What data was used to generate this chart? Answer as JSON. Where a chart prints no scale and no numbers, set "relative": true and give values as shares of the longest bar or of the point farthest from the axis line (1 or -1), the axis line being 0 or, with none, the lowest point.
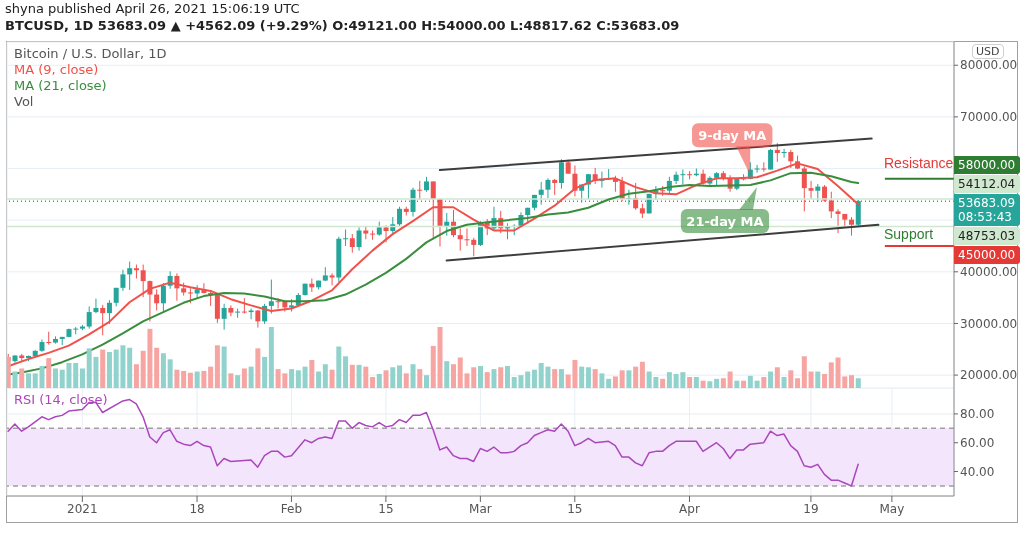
{
  "chart_data": [
    {
      "type": "candlestick",
      "title": "Bitcoin / U.S. Dollar, 1D",
      "annotations": [
        "shyna published April 26, 2021 15:06:19 UTC",
        "BTCUSD, 1D  53683.09 ▲ +4562.09 (+9.29%)  O:49121.00 H:54000.00 L:48817.62 C:53683.09",
        "USD",
        {
          "text": "9-day MA",
          "x": "2021-04-10",
          "y": 58300
        },
        {
          "text": "21-day MA",
          "x": "2021-04-11",
          "y": 56800
        },
        "Resistance",
        "Support",
        "08:53:43"
      ],
      "x": [
        "2020-12-21",
        "2020-12-22",
        "2020-12-23",
        "2020-12-24",
        "2020-12-25",
        "2020-12-26",
        "2020-12-27",
        "2020-12-28",
        "2020-12-29",
        "2020-12-30",
        "2020-12-31",
        "2021-01-01",
        "2021-01-02",
        "2021-01-03",
        "2021-01-04",
        "2021-01-05",
        "2021-01-06",
        "2021-01-07",
        "2021-01-08",
        "2021-01-09",
        "2021-01-10",
        "2021-01-11",
        "2021-01-12",
        "2021-01-13",
        "2021-01-14",
        "2021-01-15",
        "2021-01-16",
        "2021-01-17",
        "2021-01-18",
        "2021-01-19",
        "2021-01-20",
        "2021-01-21",
        "2021-01-22",
        "2021-01-23",
        "2021-01-24",
        "2021-01-25",
        "2021-01-26",
        "2021-01-27",
        "2021-01-28",
        "2021-01-29",
        "2021-01-30",
        "2021-01-31",
        "2021-02-01",
        "2021-02-02",
        "2021-02-03",
        "2021-02-04",
        "2021-02-05",
        "2021-02-06",
        "2021-02-07",
        "2021-02-08",
        "2021-02-09",
        "2021-02-10",
        "2021-02-11",
        "2021-02-12",
        "2021-02-13",
        "2021-02-14",
        "2021-02-15",
        "2021-02-16",
        "2021-02-17",
        "2021-02-18",
        "2021-02-19",
        "2021-02-20",
        "2021-02-21",
        "2021-02-22",
        "2021-02-23",
        "2021-02-24",
        "2021-02-25",
        "2021-02-26",
        "2021-02-27",
        "2021-02-28",
        "2021-03-01",
        "2021-03-02",
        "2021-03-03",
        "2021-03-04",
        "2021-03-05",
        "2021-03-06",
        "2021-03-07",
        "2021-03-08",
        "2021-03-09",
        "2021-03-10",
        "2021-03-11",
        "2021-03-12",
        "2021-03-13",
        "2021-03-14",
        "2021-03-15",
        "2021-03-16",
        "2021-03-17",
        "2021-03-18",
        "2021-03-19",
        "2021-03-20",
        "2021-03-21",
        "2021-03-22",
        "2021-03-23",
        "2021-03-24",
        "2021-03-25",
        "2021-03-26",
        "2021-03-27",
        "2021-03-28",
        "2021-03-29",
        "2021-03-30",
        "2021-03-31",
        "2021-04-01",
        "2021-04-02",
        "2021-04-03",
        "2021-04-04",
        "2021-04-05",
        "2021-04-06",
        "2021-04-07",
        "2021-04-08",
        "2021-04-09",
        "2021-04-10",
        "2021-04-11",
        "2021-04-12",
        "2021-04-13",
        "2021-04-14",
        "2021-04-15",
        "2021-04-16",
        "2021-04-17",
        "2021-04-18",
        "2021-04-19",
        "2021-04-20",
        "2021-04-21",
        "2021-04-22",
        "2021-04-23",
        "2021-04-24",
        "2021-04-25",
        "2021-04-26"
      ],
      "ohlc": [
        [
          23500,
          24100,
          22400,
          22700
        ],
        [
          22700,
          23800,
          22400,
          23800
        ],
        [
          23800,
          24100,
          22700,
          23300
        ],
        [
          23300,
          23800,
          22700,
          23700
        ],
        [
          23700,
          24800,
          23400,
          24700
        ],
        [
          24700,
          26900,
          24500,
          26400
        ],
        [
          26400,
          28400,
          25900,
          26300
        ],
        [
          26300,
          27500,
          26100,
          27000
        ],
        [
          27000,
          27400,
          25800,
          27400
        ],
        [
          27400,
          29000,
          27300,
          28900
        ],
        [
          28900,
          29300,
          27900,
          29000
        ],
        [
          29000,
          29700,
          28700,
          29400
        ],
        [
          29400,
          33300,
          29000,
          32200
        ],
        [
          32200,
          34800,
          32000,
          33000
        ],
        [
          33000,
          33600,
          27700,
          32000
        ],
        [
          32000,
          34500,
          29900,
          34000
        ],
        [
          34000,
          36900,
          33300,
          36900
        ],
        [
          36900,
          40400,
          36300,
          39500
        ],
        [
          39500,
          42000,
          36500,
          40700
        ],
        [
          40700,
          41400,
          38700,
          40300
        ],
        [
          40300,
          41400,
          35100,
          38200
        ],
        [
          38200,
          38300,
          30400,
          35600
        ],
        [
          35600,
          36600,
          32500,
          33900
        ],
        [
          33900,
          37800,
          32400,
          37300
        ],
        [
          37300,
          40100,
          36700,
          39200
        ],
        [
          39200,
          39700,
          34400,
          36800
        ],
        [
          36800,
          37900,
          35400,
          36000
        ],
        [
          36000,
          36800,
          33900,
          35800
        ],
        [
          35800,
          37400,
          34800,
          36600
        ],
        [
          36600,
          37800,
          35800,
          35900
        ],
        [
          35900,
          36400,
          33400,
          35500
        ],
        [
          35500,
          35600,
          30100,
          30900
        ],
        [
          30900,
          33800,
          28800,
          33000
        ],
        [
          33000,
          33500,
          31400,
          32100
        ],
        [
          32100,
          32900,
          31100,
          32300
        ],
        [
          32300,
          34900,
          31900,
          32200
        ],
        [
          32200,
          32900,
          30800,
          32500
        ],
        [
          32500,
          32600,
          29200,
          30400
        ],
        [
          30400,
          33800,
          29900,
          33400
        ],
        [
          33400,
          38500,
          31900,
          34300
        ],
        [
          34300,
          34900,
          32900,
          34200
        ],
        [
          34200,
          34300,
          32300,
          33100
        ],
        [
          33100,
          34700,
          32300,
          33500
        ],
        [
          33500,
          35900,
          33400,
          35500
        ],
        [
          35500,
          37700,
          35400,
          37700
        ],
        [
          37700,
          38700,
          36100,
          37000
        ],
        [
          37000,
          38300,
          36600,
          38300
        ],
        [
          38300,
          40900,
          38200,
          39300
        ],
        [
          39300,
          39700,
          37400,
          38900
        ],
        [
          38900,
          46800,
          38000,
          46400
        ],
        [
          46400,
          48200,
          45000,
          46500
        ],
        [
          46500,
          47300,
          43700,
          44800
        ],
        [
          44800,
          48600,
          44100,
          48000
        ],
        [
          48000,
          48900,
          46300,
          47400
        ],
        [
          47400,
          48000,
          46200,
          47200
        ],
        [
          47200,
          49700,
          47000,
          48600
        ],
        [
          48600,
          49000,
          45700,
          47900
        ],
        [
          47900,
          50600,
          47100,
          49200
        ],
        [
          49200,
          52600,
          48900,
          52200
        ],
        [
          52200,
          52600,
          50900,
          51600
        ],
        [
          51600,
          56300,
          50700,
          55900
        ],
        [
          55900,
          57600,
          53900,
          55800
        ],
        [
          55800,
          58400,
          55500,
          57500
        ],
        [
          57500,
          57500,
          46500,
          54100
        ],
        [
          54100,
          54200,
          44900,
          48900
        ],
        [
          48900,
          51400,
          47000,
          49700
        ],
        [
          49700,
          52000,
          46700,
          47100
        ],
        [
          47100,
          48400,
          44100,
          46300
        ],
        [
          46300,
          48400,
          45000,
          46200
        ],
        [
          46200,
          46600,
          43000,
          45200
        ],
        [
          45200,
          49800,
          45000,
          49600
        ],
        [
          49600,
          50200,
          47100,
          48400
        ],
        [
          48400,
          52600,
          48100,
          50400
        ],
        [
          50400,
          51800,
          47500,
          48400
        ],
        [
          48400,
          49400,
          46300,
          48800
        ],
        [
          48800,
          49200,
          47100,
          48900
        ],
        [
          48900,
          51500,
          48900,
          51000
        ],
        [
          51000,
          52400,
          49300,
          52400
        ],
        [
          52400,
          54900,
          51900,
          54900
        ],
        [
          54900,
          57400,
          53000,
          55900
        ],
        [
          55900,
          58100,
          54300,
          57800
        ],
        [
          57800,
          58000,
          54900,
          57200
        ],
        [
          57200,
          61800,
          56100,
          61200
        ],
        [
          61200,
          61700,
          59000,
          59000
        ],
        [
          59000,
          60600,
          54600,
          55700
        ],
        [
          55700,
          56900,
          53400,
          56900
        ],
        [
          56900,
          58900,
          54100,
          58900
        ],
        [
          58900,
          60100,
          57000,
          57600
        ],
        [
          57600,
          59400,
          56300,
          58000
        ],
        [
          58000,
          59900,
          57800,
          58100
        ],
        [
          58100,
          58600,
          55500,
          57400
        ],
        [
          57400,
          58400,
          53700,
          54100
        ],
        [
          54100,
          55900,
          53000,
          54300
        ],
        [
          54300,
          57200,
          52000,
          52300
        ],
        [
          52300,
          53200,
          50400,
          51300
        ],
        [
          51300,
          55100,
          51300,
          55100
        ],
        [
          55100,
          56600,
          53900,
          55800
        ],
        [
          55800,
          56600,
          54700,
          55700
        ],
        [
          55700,
          58400,
          54900,
          57600
        ],
        [
          57600,
          59400,
          57000,
          58800
        ],
        [
          58800,
          59800,
          56900,
          58900
        ],
        [
          58900,
          59500,
          57900,
          58700
        ],
        [
          58700,
          60000,
          58500,
          59000
        ],
        [
          59000,
          59800,
          56900,
          57100
        ],
        [
          57100,
          58500,
          56500,
          58200
        ],
        [
          58200,
          59300,
          56800,
          59100
        ],
        [
          59100,
          59500,
          57700,
          58000
        ],
        [
          58000,
          58700,
          55500,
          56100
        ],
        [
          56100,
          58200,
          55800,
          58100
        ],
        [
          58100,
          58900,
          57700,
          58000
        ],
        [
          58000,
          61200,
          57900,
          59800
        ],
        [
          59800,
          60700,
          59200,
          60000
        ],
        [
          60000,
          61200,
          59400,
          59800
        ],
        [
          59800,
          63800,
          59800,
          63600
        ],
        [
          63600,
          64900,
          61300,
          63000
        ],
        [
          63000,
          63800,
          62100,
          63200
        ],
        [
          63200,
          63600,
          60100,
          61400
        ],
        [
          61400,
          62500,
          59900,
          60000
        ],
        [
          60000,
          60400,
          51700,
          56200
        ],
        [
          56200,
          57600,
          54200,
          55700
        ],
        [
          55700,
          57000,
          53500,
          56500
        ],
        [
          56500,
          56800,
          53600,
          53800
        ],
        [
          53800,
          55500,
          50400,
          51700
        ],
        [
          51700,
          52100,
          47500,
          51200
        ],
        [
          51200,
          51200,
          48800,
          50100
        ],
        [
          50100,
          50600,
          47000,
          49121
        ],
        [
          49121,
          54000,
          48817.62,
          53683.09
        ]
      ],
      "colors": [
        "#ef5350",
        "#26a69a",
        "#ef5350",
        "#26a69a",
        "#26a69a",
        "#26a69a",
        "#ef5350",
        "#26a69a",
        "#26a69a",
        "#26a69a",
        "#26a69a",
        "#26a69a",
        "#26a69a",
        "#26a69a",
        "#ef5350",
        "#26a69a",
        "#26a69a",
        "#26a69a",
        "#26a69a",
        "#ef5350",
        "#ef5350",
        "#ef5350",
        "#ef5350",
        "#26a69a",
        "#26a69a",
        "#ef5350",
        "#ef5350",
        "#ef5350",
        "#26a69a",
        "#ef5350",
        "#ef5350",
        "#ef5350",
        "#26a69a",
        "#ef5350",
        "#26a69a",
        "#ef5350",
        "#26a69a",
        "#ef5350",
        "#26a69a",
        "#26a69a",
        "#ef5350",
        "#ef5350",
        "#26a69a",
        "#26a69a",
        "#26a69a",
        "#ef5350",
        "#26a69a",
        "#26a69a",
        "#ef5350",
        "#26a69a",
        "#26a69a",
        "#ef5350",
        "#26a69a",
        "#ef5350",
        "#ef5350",
        "#26a69a",
        "#ef5350",
        "#26a69a",
        "#26a69a",
        "#ef5350",
        "#26a69a",
        "#ef5350",
        "#26a69a",
        "#ef5350",
        "#ef5350",
        "#26a69a",
        "#ef5350",
        "#ef5350",
        "#ef5350",
        "#ef5350",
        "#26a69a",
        "#ef5350",
        "#26a69a",
        "#ef5350",
        "#26a69a",
        "#26a69a",
        "#26a69a",
        "#26a69a",
        "#26a69a",
        "#26a69a",
        "#26a69a",
        "#ef5350",
        "#26a69a",
        "#ef5350",
        "#ef5350",
        "#26a69a",
        "#26a69a",
        "#ef5350",
        "#26a69a",
        "#26a69a",
        "#ef5350",
        "#ef5350",
        "#26a69a",
        "#ef5350",
        "#ef5350",
        "#26a69a",
        "#26a69a",
        "#ef5350",
        "#26a69a",
        "#26a69a",
        "#26a69a",
        "#ef5350",
        "#26a69a",
        "#ef5350",
        "#26a69a",
        "#26a69a",
        "#ef5350",
        "#ef5350",
        "#26a69a",
        "#ef5350",
        "#26a69a",
        "#26a69a",
        "#ef5350",
        "#26a69a",
        "#ef5350",
        "#26a69a",
        "#ef5350",
        "#ef5350",
        "#ef5350",
        "#ef5350",
        "#26a69a",
        "#ef5350",
        "#ef5350",
        "#ef5350",
        "#ef5350",
        "#ef5350",
        "#26a69a"
      ],
      "series": [
        {
          "name": "MA (9, close)",
          "type": "line",
          "color": "#f0514b",
          "x": [
            "2020-12-21",
            "2020-12-24",
            "2020-12-27",
            "2020-12-30",
            "2021-01-02",
            "2021-01-05",
            "2021-01-08",
            "2021-01-11",
            "2021-01-14",
            "2021-01-17",
            "2021-01-20",
            "2021-01-23",
            "2021-01-26",
            "2021-01-29",
            "2021-02-01",
            "2021-02-04",
            "2021-02-07",
            "2021-02-10",
            "2021-02-13",
            "2021-02-16",
            "2021-02-19",
            "2021-02-22",
            "2021-02-25",
            "2021-02-28",
            "2021-03-03",
            "2021-03-06",
            "2021-03-09",
            "2021-03-12",
            "2021-03-15",
            "2021-03-18",
            "2021-03-21",
            "2021-03-24",
            "2021-03-27",
            "2021-03-30",
            "2021-04-02",
            "2021-04-05",
            "2021-04-08",
            "2021-04-11",
            "2021-04-14",
            "2021-04-17",
            "2021-04-20",
            "2021-04-23",
            "2021-04-26"
          ],
          "values": [
            21700,
            23100,
            24300,
            25700,
            27900,
            30300,
            34100,
            36700,
            37900,
            37000,
            36300,
            34700,
            33500,
            32400,
            32900,
            34400,
            36400,
            40500,
            44100,
            47300,
            49800,
            52500,
            52500,
            50100,
            48000,
            48000,
            50300,
            52800,
            56100,
            57800,
            58100,
            56400,
            55200,
            55000,
            56800,
            58100,
            58100,
            58300,
            59600,
            61000,
            59900,
            56600,
            53100
          ]
        },
        {
          "name": "MA (21, close)",
          "type": "line",
          "color": "#388e3c",
          "x": [
            "2020-12-21",
            "2020-12-23",
            "2020-12-26",
            "2020-12-29",
            "2021-01-01",
            "2021-01-04",
            "2021-01-07",
            "2021-01-10",
            "2021-01-13",
            "2021-01-16",
            "2021-01-19",
            "2021-01-22",
            "2021-01-25",
            "2021-01-28",
            "2021-01-31",
            "2021-02-03",
            "2021-02-06",
            "2021-02-09",
            "2021-02-12",
            "2021-02-15",
            "2021-02-18",
            "2021-02-21",
            "2021-02-24",
            "2021-02-27",
            "2021-03-02",
            "2021-03-05",
            "2021-03-08",
            "2021-03-11",
            "2021-03-14",
            "2021-03-17",
            "2021-03-20",
            "2021-03-23",
            "2021-03-26",
            "2021-03-29",
            "2021-04-01",
            "2021-04-04",
            "2021-04-07",
            "2021-04-10",
            "2021-04-13",
            "2021-04-16",
            "2021-04-19",
            "2021-04-22",
            "2021-04-25",
            "2021-04-26"
          ],
          "values": [
            20100,
            20500,
            21300,
            22500,
            24000,
            25900,
            28100,
            30400,
            32200,
            34000,
            35300,
            35900,
            35800,
            35200,
            34300,
            34300,
            34500,
            35600,
            37500,
            39800,
            42500,
            45700,
            47900,
            49100,
            49600,
            50000,
            50400,
            51100,
            51500,
            52400,
            54000,
            55100,
            55600,
            56400,
            56800,
            56600,
            56700,
            56800,
            57700,
            59100,
            59200,
            58500,
            57400,
            57200
          ]
        },
        {
          "type": "line",
          "color": "#3d3d3d",
          "x": [
            "2021-02-23",
            "2021-04-28"
          ],
          "values": [
            59700,
            65800
          ]
        },
        {
          "type": "line",
          "color": "#3d3d3d",
          "x": [
            "2021-02-24",
            "2021-04-29"
          ],
          "values": [
            42200,
            49100
          ]
        }
      ],
      "xlim": [
        "2020-12-20T20:00",
        "2021-05-10T05:00"
      ],
      "xticks": [
        {
          "value": "2021-01-01",
          "label": null
        },
        {
          "value": "2021-01-18",
          "label": null
        },
        {
          "value": "2021-02-01",
          "label": null
        },
        {
          "value": "2021-02-15",
          "label": null
        },
        {
          "value": "2021-03-01",
          "label": null
        },
        {
          "value": "2021-03-15",
          "label": null
        },
        {
          "value": "2021-04-01",
          "label": null
        },
        {
          "value": "2021-04-19",
          "label": null
        },
        {
          "value": "2021-05-01",
          "label": null
        }
      ],
      "ylim": [
        17500,
        84500
      ],
      "yticks": [
        {
          "value": 20000,
          "label": "20000.00"
        },
        {
          "value": 30000,
          "label": "30000.00"
        },
        {
          "value": 40000,
          "label": "40000.00"
        },
        {
          "value": 50000,
          "label": null
        },
        {
          "value": 60000,
          "label": null
        },
        {
          "value": 70000,
          "label": "70000.00"
        },
        {
          "value": 80000,
          "label": "80000.00"
        }
      ],
      "tick_labels": "y",
      "grid": true,
      "legend": "top left",
      "ref_lines": [
        {
          "axis": "y",
          "value": 58000,
          "label": "58000.00",
          "color": "#2e7d32"
        },
        {
          "axis": "y",
          "value": 45000,
          "label": "45000.00",
          "color": "#e53935"
        },
        {
          "axis": "y",
          "value": 54112.04,
          "label": "54112.04",
          "color": "#cfe8cf"
        },
        {
          "axis": "y",
          "value": 53683.09,
          "label": "53683.09",
          "color": "#26a69a",
          "line_style": "dotted"
        },
        {
          "axis": "y",
          "value": 48753.03,
          "label": "48753.03",
          "color": "#cfe8cf"
        }
      ]
    },
    {
      "type": "bar",
      "relative": true,
      "tick_labels": false,
      "legend": "top left",
      "x": [
        "2020-12-21",
        "2020-12-22",
        "2020-12-23",
        "2020-12-24",
        "2020-12-25",
        "2020-12-26",
        "2020-12-27",
        "2020-12-28",
        "2020-12-29",
        "2020-12-30",
        "2020-12-31",
        "2021-01-01",
        "2021-01-02",
        "2021-01-03",
        "2021-01-04",
        "2021-01-05",
        "2021-01-06",
        "2021-01-07",
        "2021-01-08",
        "2021-01-09",
        "2021-01-10",
        "2021-01-11",
        "2021-01-12",
        "2021-01-13",
        "2021-01-14",
        "2021-01-15",
        "2021-01-16",
        "2021-01-17",
        "2021-01-18",
        "2021-01-19",
        "2021-01-20",
        "2021-01-21",
        "2021-01-22",
        "2021-01-23",
        "2021-01-24",
        "2021-01-25",
        "2021-01-26",
        "2021-01-27",
        "2021-01-28",
        "2021-01-29",
        "2021-01-30",
        "2021-01-31",
        "2021-02-01",
        "2021-02-02",
        "2021-02-03",
        "2021-02-04",
        "2021-02-05",
        "2021-02-06",
        "2021-02-07",
        "2021-02-08",
        "2021-02-09",
        "2021-02-10",
        "2021-02-11",
        "2021-02-12",
        "2021-02-13",
        "2021-02-14",
        "2021-02-15",
        "2021-02-16",
        "2021-02-17",
        "2021-02-18",
        "2021-02-19",
        "2021-02-20",
        "2021-02-21",
        "2021-02-22",
        "2021-02-23",
        "2021-02-24",
        "2021-02-25",
        "2021-02-26",
        "2021-02-27",
        "2021-02-28",
        "2021-03-01",
        "2021-03-02",
        "2021-03-03",
        "2021-03-04",
        "2021-03-05",
        "2021-03-06",
        "2021-03-07",
        "2021-03-08",
        "2021-03-09",
        "2021-03-10",
        "2021-03-11",
        "2021-03-12",
        "2021-03-13",
        "2021-03-14",
        "2021-03-15",
        "2021-03-16",
        "2021-03-17",
        "2021-03-18",
        "2021-03-19",
        "2021-03-20",
        "2021-03-21",
        "2021-03-22",
        "2021-03-23",
        "2021-03-24",
        "2021-03-25",
        "2021-03-26",
        "2021-03-27",
        "2021-03-28",
        "2021-03-29",
        "2021-03-30",
        "2021-03-31",
        "2021-04-01",
        "2021-04-02",
        "2021-04-03",
        "2021-04-04",
        "2021-04-05",
        "2021-04-06",
        "2021-04-07",
        "2021-04-08",
        "2021-04-09",
        "2021-04-10",
        "2021-04-11",
        "2021-04-12",
        "2021-04-13",
        "2021-04-14",
        "2021-04-15",
        "2021-04-16",
        "2021-04-17",
        "2021-04-18",
        "2021-04-19",
        "2021-04-20",
        "2021-04-21",
        "2021-04-22",
        "2021-04-23",
        "2021-04-24",
        "2021-04-25",
        "2021-04-26"
      ],
      "xlim": [
        "2020-12-20T20:00",
        "2021-05-10T05:00"
      ],
      "series": [
        {
          "name": "Vol",
          "values": [
            0.51,
            0.27,
            0.32,
            0.24,
            0.24,
            0.36,
            0.49,
            0.32,
            0.3,
            0.41,
            0.41,
            0.32,
            0.65,
            0.51,
            0.63,
            0.59,
            0.63,
            0.7,
            0.66,
            0.39,
            0.61,
            0.97,
            0.66,
            0.57,
            0.47,
            0.3,
            0.28,
            0.25,
            0.27,
            0.28,
            0.35,
            0.7,
            0.68,
            0.24,
            0.21,
            0.32,
            0.35,
            0.65,
            0.51,
            1,
            0.31,
            0.24,
            0.31,
            0.29,
            0.35,
            0.46,
            0.27,
            0.39,
            0.3,
            0.68,
            0.52,
            0.38,
            0.38,
            0.35,
            0.18,
            0.23,
            0.29,
            0.34,
            0.37,
            0.24,
            0.39,
            0.31,
            0.21,
            0.69,
            1,
            0.44,
            0.39,
            0.5,
            0.24,
            0.34,
            0.36,
            0.26,
            0.31,
            0.34,
            0.36,
            0.18,
            0.21,
            0.27,
            0.3,
            0.41,
            0.35,
            0.31,
            0.31,
            0.22,
            0.46,
            0.35,
            0.34,
            0.31,
            0.24,
            0.15,
            0.19,
            0.29,
            0.29,
            0.35,
            0.43,
            0.27,
            0.18,
            0.15,
            0.26,
            0.23,
            0.26,
            0.18,
            0.18,
            0.12,
            0.11,
            0.15,
            0.16,
            0.27,
            0.12,
            0.12,
            0.2,
            0.12,
            0.18,
            0.27,
            0.34,
            0.18,
            0.29,
            0.16,
            0.52,
            0.27,
            0.27,
            0.23,
            0.42,
            0.5,
            0.19,
            0.21,
            0.16
          ],
          "colors": [
            "#f6a5a3",
            "#92d2cc",
            "#f6a5a3",
            "#92d2cc",
            "#92d2cc",
            "#92d2cc",
            "#f6a5a3",
            "#92d2cc",
            "#92d2cc",
            "#92d2cc",
            "#92d2cc",
            "#92d2cc",
            "#92d2cc",
            "#92d2cc",
            "#f6a5a3",
            "#92d2cc",
            "#92d2cc",
            "#92d2cc",
            "#92d2cc",
            "#f6a5a3",
            "#f6a5a3",
            "#f6a5a3",
            "#f6a5a3",
            "#92d2cc",
            "#92d2cc",
            "#f6a5a3",
            "#f6a5a3",
            "#f6a5a3",
            "#92d2cc",
            "#f6a5a3",
            "#f6a5a3",
            "#f6a5a3",
            "#92d2cc",
            "#f6a5a3",
            "#92d2cc",
            "#f6a5a3",
            "#92d2cc",
            "#f6a5a3",
            "#92d2cc",
            "#92d2cc",
            "#f6a5a3",
            "#f6a5a3",
            "#92d2cc",
            "#92d2cc",
            "#92d2cc",
            "#f6a5a3",
            "#92d2cc",
            "#92d2cc",
            "#f6a5a3",
            "#92d2cc",
            "#92d2cc",
            "#f6a5a3",
            "#92d2cc",
            "#f6a5a3",
            "#f6a5a3",
            "#92d2cc",
            "#f6a5a3",
            "#92d2cc",
            "#92d2cc",
            "#f6a5a3",
            "#92d2cc",
            "#f6a5a3",
            "#92d2cc",
            "#f6a5a3",
            "#f6a5a3",
            "#92d2cc",
            "#f6a5a3",
            "#f6a5a3",
            "#f6a5a3",
            "#f6a5a3",
            "#92d2cc",
            "#f6a5a3",
            "#92d2cc",
            "#f6a5a3",
            "#92d2cc",
            "#92d2cc",
            "#92d2cc",
            "#92d2cc",
            "#92d2cc",
            "#92d2cc",
            "#92d2cc",
            "#f6a5a3",
            "#92d2cc",
            "#f6a5a3",
            "#f6a5a3",
            "#92d2cc",
            "#92d2cc",
            "#f6a5a3",
            "#92d2cc",
            "#92d2cc",
            "#f6a5a3",
            "#f6a5a3",
            "#92d2cc",
            "#f6a5a3",
            "#f6a5a3",
            "#92d2cc",
            "#92d2cc",
            "#f6a5a3",
            "#92d2cc",
            "#92d2cc",
            "#92d2cc",
            "#f6a5a3",
            "#92d2cc",
            "#f6a5a3",
            "#92d2cc",
            "#92d2cc",
            "#f6a5a3",
            "#f6a5a3",
            "#92d2cc",
            "#f6a5a3",
            "#92d2cc",
            "#92d2cc",
            "#f6a5a3",
            "#92d2cc",
            "#f6a5a3",
            "#92d2cc",
            "#f6a5a3",
            "#f6a5a3",
            "#f6a5a3",
            "#f6a5a3",
            "#92d2cc",
            "#f6a5a3",
            "#f6a5a3",
            "#f6a5a3",
            "#f6a5a3",
            "#f6a5a3",
            "#92d2cc"
          ]
        }
      ]
    },
    {
      "type": "line",
      "legend": "top left",
      "grid": true,
      "series": [
        {
          "name": "RSI (14, close)",
          "color": "#ab47bc",
          "x": [
            "2020-12-21",
            "2020-12-22",
            "2020-12-23",
            "2020-12-24",
            "2020-12-26",
            "2020-12-27",
            "2020-12-28",
            "2020-12-29",
            "2020-12-30",
            "2021-01-01",
            "2021-01-02",
            "2021-01-03",
            "2021-01-04",
            "2021-01-07",
            "2021-01-08",
            "2021-01-09",
            "2021-01-10",
            "2021-01-11",
            "2021-01-12",
            "2021-01-13",
            "2021-01-14",
            "2021-01-15",
            "2021-01-16",
            "2021-01-17",
            "2021-01-18",
            "2021-01-19",
            "2021-01-20",
            "2021-01-21",
            "2021-01-22",
            "2021-01-23",
            "2021-01-26",
            "2021-01-27",
            "2021-01-28",
            "2021-01-29",
            "2021-01-30",
            "2021-01-31",
            "2021-02-01",
            "2021-02-03",
            "2021-02-04",
            "2021-02-05",
            "2021-02-06",
            "2021-02-07",
            "2021-02-08",
            "2021-02-09",
            "2021-02-10",
            "2021-02-11",
            "2021-02-12",
            "2021-02-13",
            "2021-02-14",
            "2021-02-15",
            "2021-02-16",
            "2021-02-17",
            "2021-02-18",
            "2021-02-19",
            "2021-02-20",
            "2021-02-21",
            "2021-02-22",
            "2021-02-23",
            "2021-02-24",
            "2021-02-25",
            "2021-02-26",
            "2021-02-27",
            "2021-02-28",
            "2021-03-01",
            "2021-03-02",
            "2021-03-03",
            "2021-03-04",
            "2021-03-05",
            "2021-03-06",
            "2021-03-07",
            "2021-03-08",
            "2021-03-09",
            "2021-03-10",
            "2021-03-11",
            "2021-03-12",
            "2021-03-13",
            "2021-03-14",
            "2021-03-15",
            "2021-03-16",
            "2021-03-17",
            "2021-03-18",
            "2021-03-20",
            "2021-03-21",
            "2021-03-22",
            "2021-03-23",
            "2021-03-24",
            "2021-03-25",
            "2021-03-26",
            "2021-03-27",
            "2021-03-28",
            "2021-03-29",
            "2021-03-30",
            "2021-04-01",
            "2021-04-02",
            "2021-04-03",
            "2021-04-05",
            "2021-04-06",
            "2021-04-07",
            "2021-04-08",
            "2021-04-09",
            "2021-04-10",
            "2021-04-12",
            "2021-04-13",
            "2021-04-14",
            "2021-04-15",
            "2021-04-16",
            "2021-04-17",
            "2021-04-18",
            "2021-04-19",
            "2021-04-20",
            "2021-04-21",
            "2021-04-22",
            "2021-04-23",
            "2021-04-24",
            "2021-04-25",
            "2021-04-26"
          ],
          "values": [
            68,
            73,
            68,
            71,
            78,
            76,
            78,
            79,
            82,
            83,
            88,
            88,
            81,
            89,
            90,
            87,
            78,
            64,
            60,
            67,
            69,
            61,
            59,
            58,
            61,
            58,
            57,
            44,
            49,
            47,
            48,
            43,
            51,
            54,
            54,
            50,
            51,
            62,
            60,
            63,
            64,
            63,
            75,
            75,
            70,
            74,
            72,
            71,
            74,
            71,
            72,
            76,
            74,
            79,
            79,
            81,
            69,
            55,
            57,
            51,
            49,
            49,
            47,
            56,
            54,
            57,
            53,
            53,
            54,
            58,
            60,
            65,
            67,
            69,
            68,
            73,
            68,
            58,
            60,
            63,
            60,
            61,
            58,
            50,
            50,
            46,
            44,
            53,
            54,
            54,
            58,
            61,
            61,
            61,
            54,
            60,
            56,
            49,
            55,
            55,
            59,
            60,
            68,
            65,
            66,
            58,
            54,
            44,
            43,
            45,
            38,
            34,
            34,
            32,
            30,
            45
          ]
        }
      ],
      "xlim": [
        "2020-12-20T20:00",
        "2021-05-10T05:00"
      ],
      "xticks": [
        {
          "value": "2021-01-01",
          "label": "2021"
        },
        {
          "value": "2021-01-18",
          "label": "18"
        },
        {
          "value": "2021-02-01",
          "label": "Feb"
        },
        {
          "value": "2021-02-15",
          "label": "15"
        },
        {
          "value": "2021-03-01",
          "label": "Mar"
        },
        {
          "value": "2021-03-15",
          "label": "15"
        },
        {
          "value": "2021-04-01",
          "label": "Apr"
        },
        {
          "value": "2021-04-19",
          "label": "19"
        },
        {
          "value": "2021-05-01",
          "label": "May"
        }
      ],
      "ylim": [
        23,
        98
      ],
      "yticks": [
        {
          "value": 40,
          "label": "40.00"
        },
        {
          "value": 60,
          "label": "60.00"
        },
        {
          "value": 80,
          "label": "80.00"
        }
      ],
      "bands": [
        {
          "axis": "y",
          "from": 30,
          "to": 70,
          "color": "#f3e5fc"
        }
      ],
      "ref_lines": [
        {
          "axis": "y",
          "value": 70,
          "color": "#a0a0a0",
          "line_style": "dashed"
        },
        {
          "axis": "y",
          "value": 30,
          "color": "#a0a0a0",
          "line_style": "dashed"
        }
      ]
    }
  ]
}
